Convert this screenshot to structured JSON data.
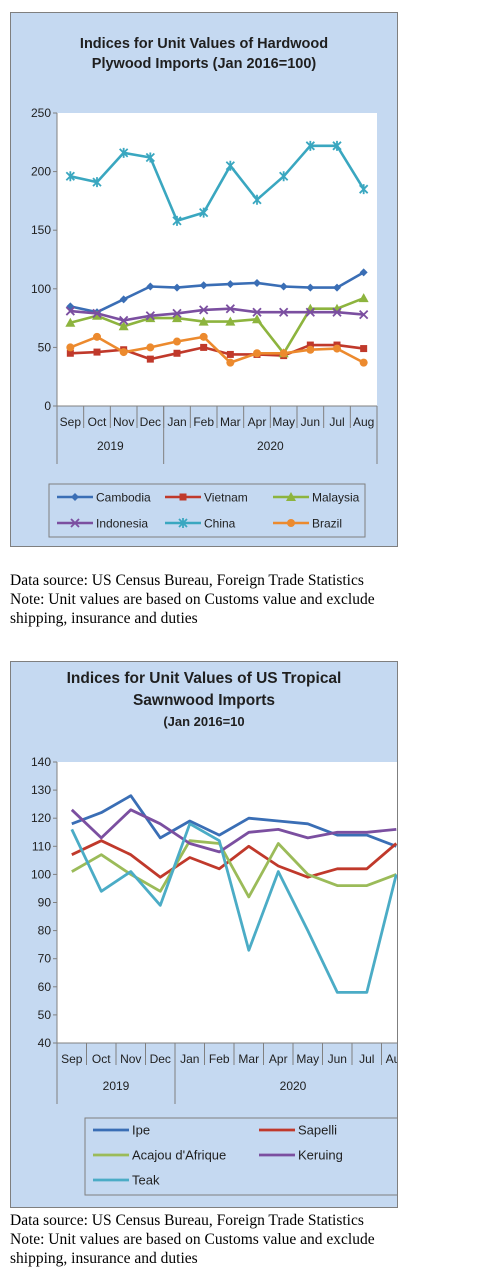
{
  "chart_data": [
    {
      "type": "line",
      "title_line1": "Indices for Unit Values of Hardwood",
      "title_line2": "Plywood Imports (Jan 2016=100)",
      "categories": [
        "Sep",
        "Oct",
        "Nov",
        "Dec",
        "Jan",
        "Feb",
        "Mar",
        "Apr",
        "May",
        "Jun",
        "Jul",
        "Aug"
      ],
      "year_groups": [
        {
          "label": "2019",
          "span": 4
        },
        {
          "label": "2020",
          "span": 8
        }
      ],
      "ylim": [
        0,
        250
      ],
      "yticks": [
        0,
        50,
        100,
        150,
        200,
        250
      ],
      "grid": false,
      "legend_position": "bottom",
      "series": [
        {
          "name": "Cambodia",
          "color": "#3a6eb5",
          "marker": "diamond",
          "values": [
            85,
            80,
            91,
            102,
            101,
            103,
            104,
            105,
            102,
            101,
            101,
            114
          ]
        },
        {
          "name": "Vietnam",
          "color": "#c0392b",
          "marker": "square",
          "values": [
            45,
            46,
            48,
            40,
            45,
            50,
            44,
            44,
            43,
            52,
            52,
            49
          ]
        },
        {
          "name": "Malaysia",
          "color": "#8db43e",
          "marker": "triangle",
          "values": [
            71,
            77,
            68,
            75,
            75,
            72,
            72,
            74,
            45,
            83,
            83,
            92
          ]
        },
        {
          "name": "Indonesia",
          "color": "#7b4fa0",
          "marker": "x",
          "values": [
            81,
            79,
            73,
            77,
            79,
            82,
            83,
            80,
            80,
            80,
            80,
            78
          ]
        },
        {
          "name": "China",
          "color": "#3aa7c0",
          "marker": "star",
          "values": [
            196,
            191,
            216,
            212,
            158,
            165,
            205,
            176,
            196,
            222,
            222,
            185
          ]
        },
        {
          "name": "Brazil",
          "color": "#ec8a2e",
          "marker": "circle",
          "values": [
            50,
            59,
            46,
            50,
            55,
            59,
            37,
            45,
            45,
            48,
            49,
            37
          ]
        }
      ]
    },
    {
      "type": "line",
      "title_line1": "Indices for Unit Values of US Tropical",
      "title_line2": "Sawnwood Imports",
      "subtitle": "(Jan 2016=10",
      "categories": [
        "Sep",
        "Oct",
        "Nov",
        "Dec",
        "Jan",
        "Feb",
        "Mar",
        "Apr",
        "May",
        "Jun",
        "Jul",
        "Aug"
      ],
      "year_groups": [
        {
          "label": "2019",
          "span": 4
        },
        {
          "label": "2020",
          "span": 8
        }
      ],
      "ylim": [
        40,
        140
      ],
      "yticks": [
        40,
        50,
        60,
        70,
        80,
        90,
        100,
        110,
        120,
        130,
        140
      ],
      "grid": false,
      "legend_position": "bottom",
      "series": [
        {
          "name": "Ipe",
          "color": "#3a6eb5",
          "values": [
            118,
            122,
            128,
            113,
            119,
            114,
            120,
            119,
            118,
            114,
            114,
            110
          ]
        },
        {
          "name": "Sapelli",
          "color": "#c0392b",
          "values": [
            107,
            112,
            107,
            99,
            106,
            102,
            110,
            103,
            99,
            102,
            102,
            111
          ]
        },
        {
          "name": "Acajou d'Afrique",
          "color": "#9bbb59",
          "values": [
            101,
            107,
            100,
            94,
            112,
            111,
            92,
            111,
            100,
            96,
            96,
            100
          ]
        },
        {
          "name": "Keruing",
          "color": "#7b4fa0",
          "values": [
            123,
            113,
            123,
            118,
            111,
            108,
            115,
            116,
            113,
            115,
            115,
            116
          ]
        },
        {
          "name": "Teak",
          "color": "#4bacc6",
          "values": [
            116,
            94,
            101,
            89,
            118,
            112,
            73,
            101,
            80,
            58,
            58,
            100
          ]
        }
      ]
    }
  ],
  "notes": [
    {
      "line1": "Data source: US Census Bureau, Foreign Trade Statistics",
      "line2": "Note: Unit values are based on Customs value and exclude",
      "line3": "shipping, insurance and duties"
    },
    {
      "line1": "Data source: US Census Bureau, Foreign Trade Statistics",
      "line2": "Note: Unit values are based on Customs value and exclude",
      "line3": "shipping, insurance and duties"
    }
  ]
}
